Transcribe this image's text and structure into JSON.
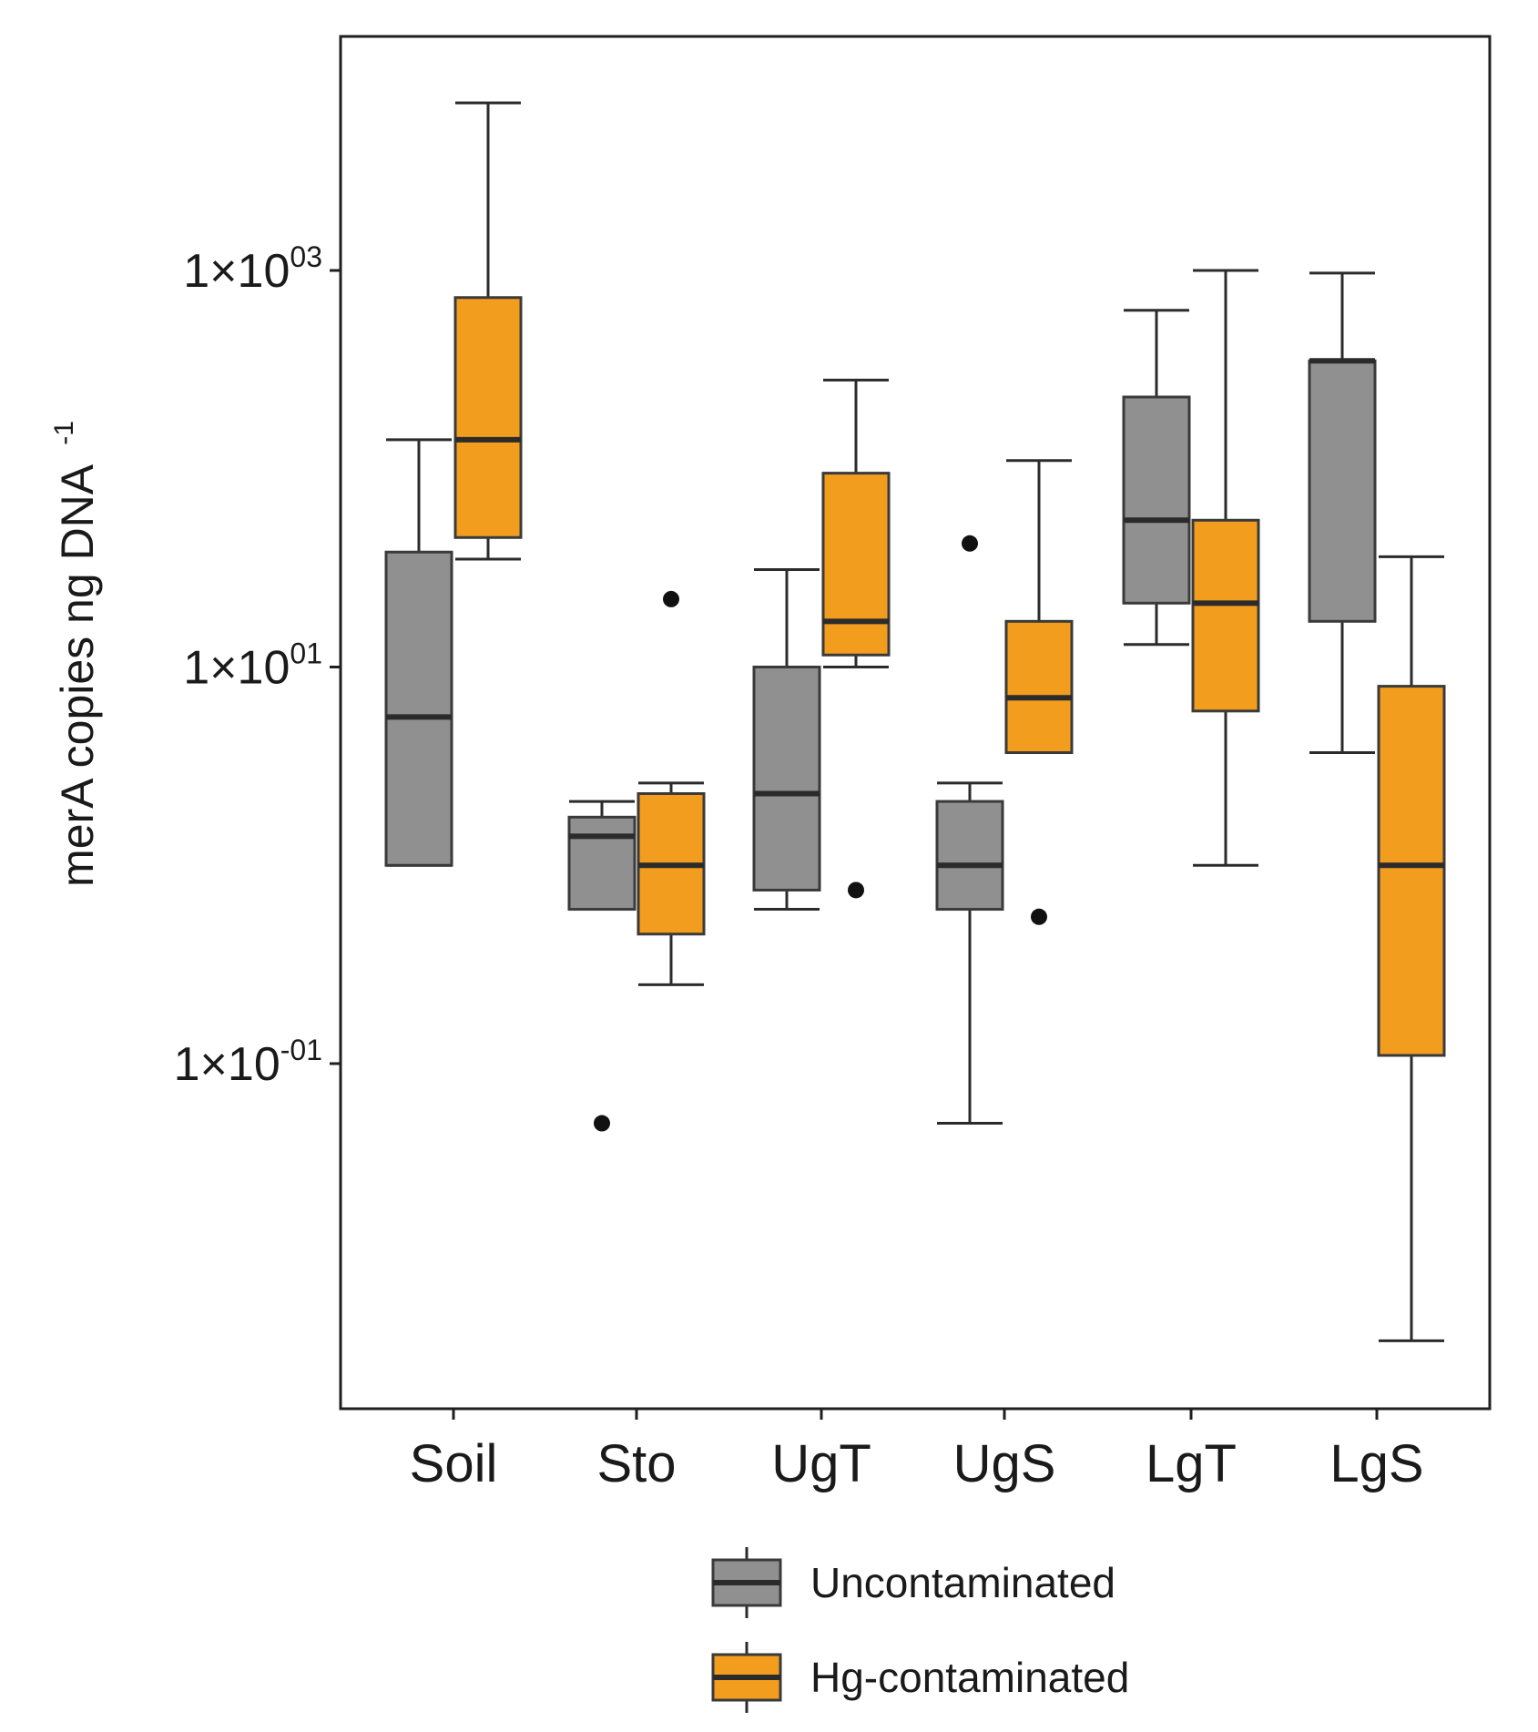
{
  "chart_data": {
    "type": "box",
    "ylabel_main": "merA copies ng DNA",
    "ylabel_sup": "-1",
    "yscale": "log10",
    "ylim": [
      0.002,
      20000
    ],
    "yticks": [
      {
        "value": 0.1,
        "base": "1×10",
        "exp": "-01"
      },
      {
        "value": 10,
        "base": "1×10",
        "exp": "01"
      },
      {
        "value": 1000,
        "base": "1×10",
        "exp": "03"
      }
    ],
    "categories": [
      "Soil",
      "Sto",
      "UgT",
      "UgS",
      "LgT",
      "LgS"
    ],
    "series": [
      {
        "name": "Uncontaminated",
        "color": "#909090",
        "boxes": [
          {
            "category": "Soil",
            "whisker_low": 1.0,
            "q1": 1.0,
            "median": 5.6,
            "q3": 38,
            "whisker_high": 140,
            "outliers": []
          },
          {
            "category": "Sto",
            "whisker_low": 0.6,
            "q1": 0.6,
            "median": 1.4,
            "q3": 1.75,
            "whisker_high": 2.1,
            "outliers": [
              0.05
            ]
          },
          {
            "category": "UgT",
            "whisker_low": 0.6,
            "q1": 0.75,
            "median": 2.3,
            "q3": 10,
            "whisker_high": 31,
            "outliers": []
          },
          {
            "category": "UgS",
            "whisker_low": 0.05,
            "q1": 0.6,
            "median": 1.0,
            "q3": 2.1,
            "whisker_high": 2.6,
            "outliers": [
              42
            ]
          },
          {
            "category": "LgT",
            "whisker_low": 13,
            "q1": 21,
            "median": 55,
            "q3": 230,
            "whisker_high": 630,
            "outliers": []
          },
          {
            "category": "LgS",
            "whisker_low": 3.7,
            "q1": 17,
            "median": 350,
            "q3": 350,
            "whisker_high": 970,
            "outliers": []
          }
        ]
      },
      {
        "name": "Hg-contaminated",
        "color": "#f29d1e",
        "boxes": [
          {
            "category": "Soil",
            "whisker_low": 35,
            "q1": 45,
            "median": 140,
            "q3": 730,
            "whisker_high": 7000,
            "outliers": []
          },
          {
            "category": "Sto",
            "whisker_low": 0.25,
            "q1": 0.45,
            "median": 1.0,
            "q3": 2.3,
            "whisker_high": 2.6,
            "outliers": [
              22
            ]
          },
          {
            "category": "UgT",
            "whisker_low": 10,
            "q1": 11.5,
            "median": 17,
            "q3": 95,
            "whisker_high": 280,
            "outliers": [
              0.75
            ]
          },
          {
            "category": "UgS",
            "whisker_low": 3.7,
            "q1": 3.7,
            "median": 7.0,
            "q3": 17,
            "whisker_high": 110,
            "outliers": [
              0.55
            ]
          },
          {
            "category": "LgT",
            "whisker_low": 1.0,
            "q1": 6.0,
            "median": 21,
            "q3": 55,
            "whisker_high": 1000,
            "outliers": []
          },
          {
            "category": "LgS",
            "whisker_low": 0.004,
            "q1": 0.11,
            "median": 1.0,
            "q3": 8.0,
            "whisker_high": 36,
            "outliers": []
          }
        ]
      }
    ],
    "legend": {
      "placement": "bottom-center",
      "entries": [
        "Uncontaminated",
        "Hg-contaminated"
      ]
    }
  }
}
